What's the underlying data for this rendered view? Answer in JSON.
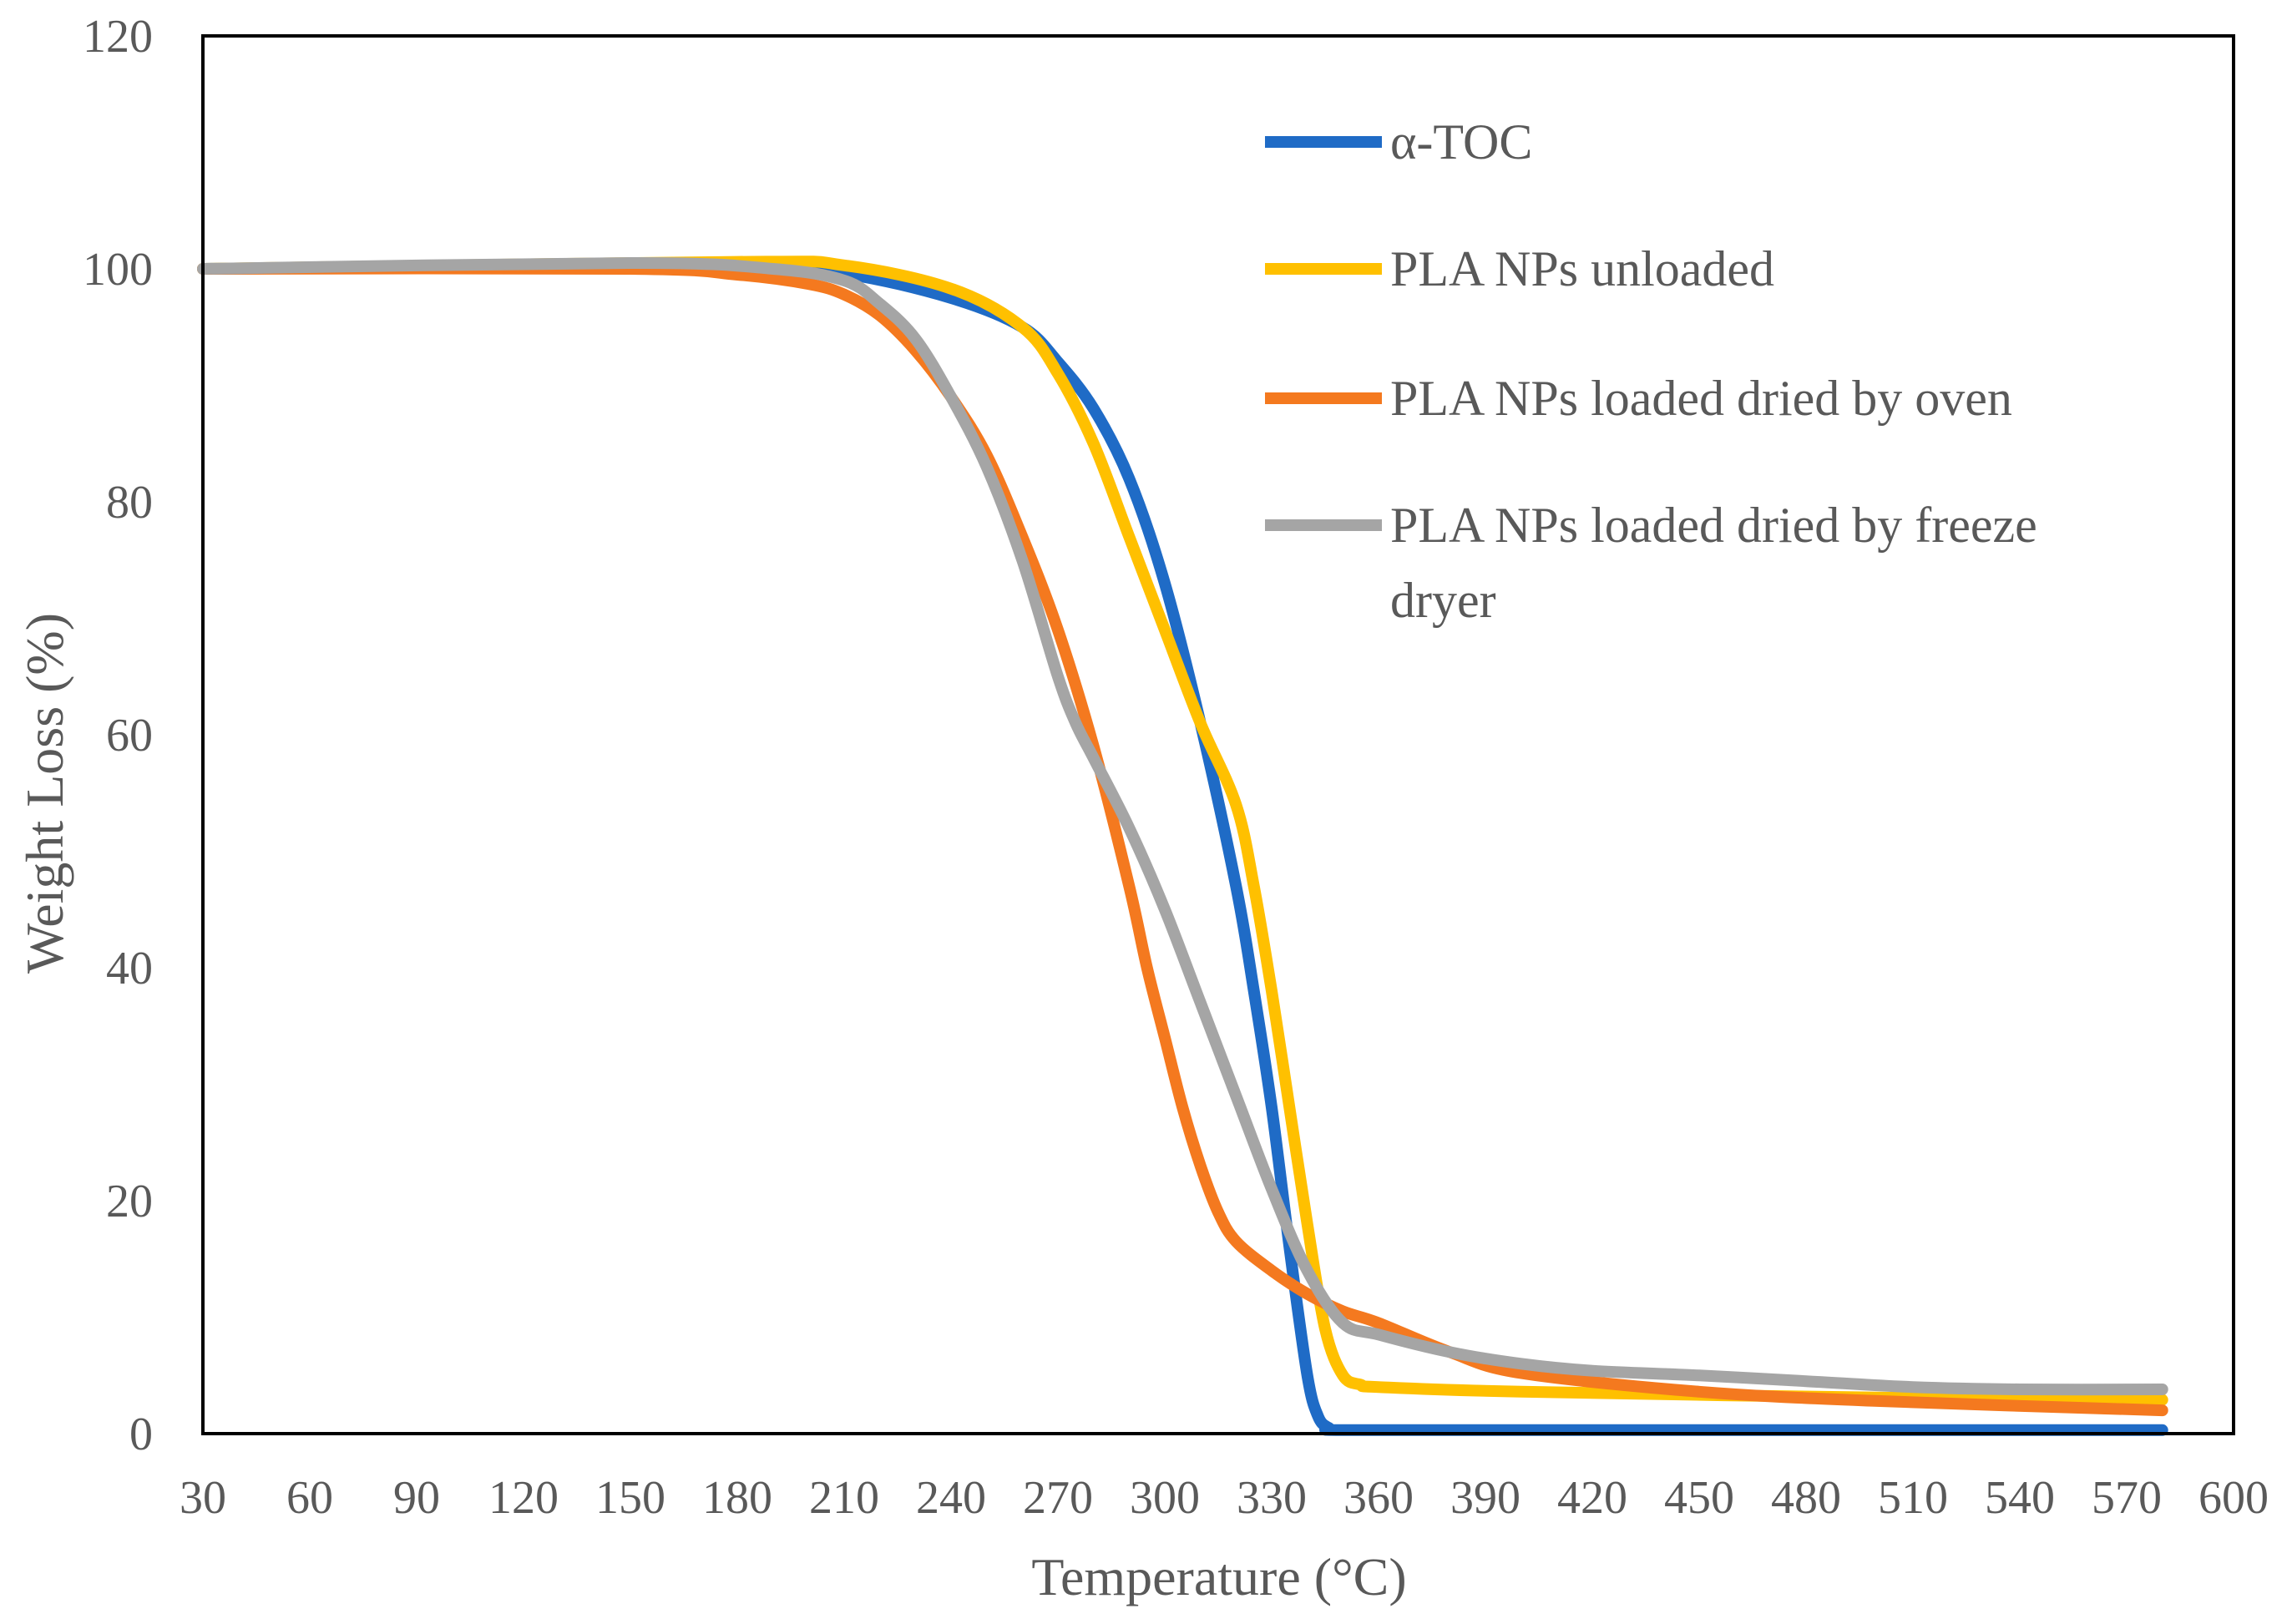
{
  "chart_data": {
    "type": "line",
    "title": "",
    "xlabel": "Temperature (°C)",
    "ylabel": "Weight Loss  (%)",
    "xlim": [
      30,
      600
    ],
    "ylim": [
      0,
      120
    ],
    "x_ticks": [
      "30",
      "60",
      "90",
      "120",
      "150",
      "180",
      "210",
      "240",
      "270",
      "300",
      "330",
      "360",
      "390",
      "420",
      "450",
      "480",
      "510",
      "540",
      "570",
      "600"
    ],
    "y_ticks": [
      "0",
      "20",
      "40",
      "60",
      "80",
      "100",
      "120"
    ],
    "grid": false,
    "legend_position": "top-right",
    "legend_last_line_wrap": "dryer",
    "series": [
      {
        "name": "α-TOC",
        "color": "#1F6BC6",
        "x": [
          30,
          180,
          210,
          240,
          260,
          270,
          280,
          290,
          300,
          310,
          320,
          325,
          330,
          335,
          340,
          343,
          346,
          350,
          400,
          500,
          580
        ],
        "y": [
          100,
          100.2,
          99.6,
          97.5,
          95,
          92,
          88,
          82,
          73,
          61,
          47,
          38,
          28,
          16,
          5,
          1.5,
          0.5,
          0.3,
          0.3,
          0.3,
          0.3
        ]
      },
      {
        "name": "PLA NPs unloaded",
        "color": "#FFC000",
        "x": [
          30,
          180,
          210,
          240,
          260,
          270,
          280,
          290,
          300,
          310,
          320,
          325,
          330,
          335,
          340,
          345,
          350,
          355,
          360,
          400,
          500,
          580
        ],
        "y": [
          100,
          100.6,
          100.3,
          98.3,
          95,
          91,
          85,
          77,
          69,
          61,
          54,
          47,
          38,
          28,
          18,
          9,
          5,
          4.2,
          4,
          3.6,
          3.1,
          2.9
        ]
      },
      {
        "name": "PLA NPs loaded dried by oven",
        "color": "#F4791F",
        "x": [
          30,
          150,
          180,
          200,
          210,
          220,
          230,
          240,
          250,
          260,
          270,
          280,
          290,
          295,
          300,
          305,
          310,
          315,
          320,
          330,
          340,
          350,
          360,
          380,
          400,
          450,
          500,
          580
        ],
        "y": [
          100,
          100,
          99.5,
          98.7,
          97.8,
          96,
          93,
          89,
          84,
          77,
          69,
          59,
          47,
          40,
          34,
          28,
          23,
          19,
          16.5,
          14,
          12,
          10.5,
          9.5,
          7,
          5.2,
          3.6,
          2.8,
          2
        ]
      },
      {
        "name": "PLA NPs loaded dried by freeze dryer",
        "color": "#A5A5A5",
        "x": [
          30,
          150,
          190,
          210,
          220,
          230,
          240,
          250,
          260,
          270,
          275,
          280,
          290,
          300,
          310,
          320,
          330,
          340,
          350,
          360,
          380,
          400,
          420,
          450,
          480,
          510,
          540,
          580
        ],
        "y": [
          100,
          100.5,
          100,
          99,
          97,
          94,
          89,
          83,
          75,
          65,
          61,
          58,
          52,
          45,
          37,
          29,
          21,
          14,
          9.5,
          8.5,
          7,
          6,
          5.4,
          5,
          4.5,
          4,
          3.8,
          3.8
        ]
      }
    ]
  }
}
